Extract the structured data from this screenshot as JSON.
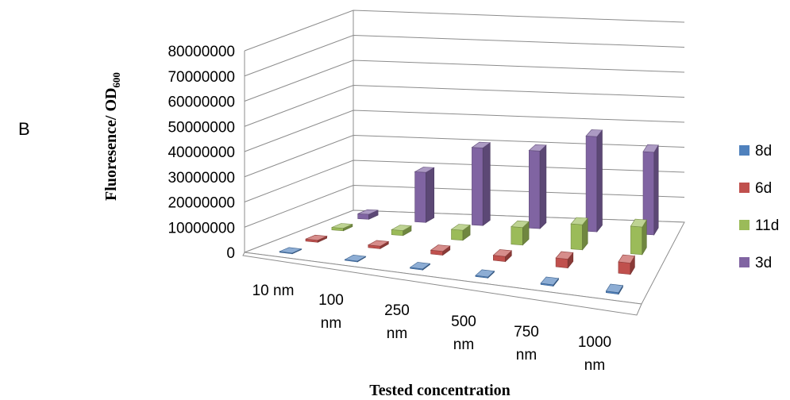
{
  "panel_label": "B",
  "chart_data": {
    "type": "bar",
    "subtype": "3d-column",
    "title": "",
    "xlabel": "Tested concentration",
    "ylabel": {
      "main": "Fluoresence/ OD",
      "subscript": "600"
    },
    "categories": [
      "10 nm",
      "100 nm",
      "250 nm",
      "500 nm",
      "750 nm",
      "1000 nm"
    ],
    "category_lines": [
      [
        "10 nm"
      ],
      [
        "100",
        "nm"
      ],
      [
        "250",
        "nm"
      ],
      [
        "500",
        "nm"
      ],
      [
        "750",
        "nm"
      ],
      [
        "1000",
        "nm"
      ]
    ],
    "yticks": [
      "0",
      "10000000",
      "20000000",
      "30000000",
      "40000000",
      "50000000",
      "60000000",
      "70000000",
      "80000000"
    ],
    "ylim": [
      0,
      80000000
    ],
    "grid": true,
    "legend_position": "right",
    "series": [
      {
        "name": "8d",
        "color": "#4f81bd",
        "values": [
          300000,
          300000,
          400000,
          400000,
          500000,
          600000
        ]
      },
      {
        "name": "6d",
        "color": "#c0504d",
        "values": [
          800000,
          1000000,
          1500000,
          2000000,
          3500000,
          4500000
        ]
      },
      {
        "name": "11d",
        "color": "#9bbb59",
        "values": [
          1000000,
          2000000,
          4000000,
          7000000,
          10000000,
          11000000
        ]
      },
      {
        "name": "3d",
        "color": "#8064a2",
        "values": [
          2000000,
          20000000,
          31000000,
          31000000,
          38000000,
          33000000
        ]
      }
    ]
  }
}
